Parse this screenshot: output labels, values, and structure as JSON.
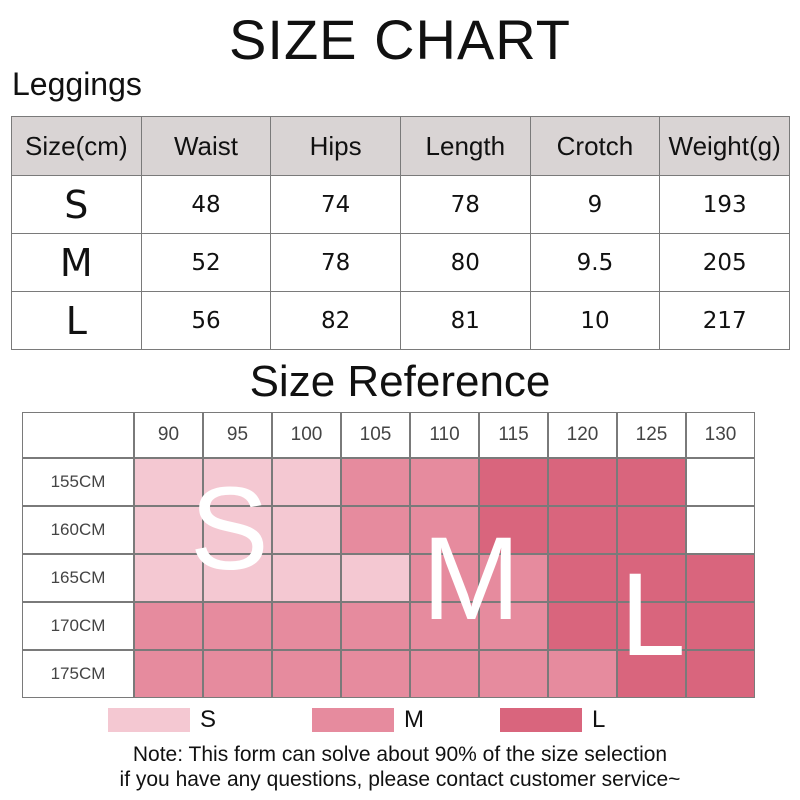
{
  "title": "SIZE CHART",
  "subtitle": "Leggings",
  "size_table": {
    "headers": [
      "Size(cm)",
      "Waist",
      "Hips",
      "Length",
      "Crotch",
      "Weight(g)"
    ],
    "rows": [
      [
        "S",
        "48",
        "74",
        "78",
        "9",
        "193"
      ],
      [
        "M",
        "52",
        "78",
        "80",
        "9.5",
        "205"
      ],
      [
        "L",
        "56",
        "82",
        "81",
        "10",
        "217"
      ]
    ]
  },
  "reference": {
    "title": "Size Reference",
    "columns": [
      "90",
      "95",
      "100",
      "105",
      "110",
      "115",
      "120",
      "125",
      "130"
    ],
    "rows": [
      "155CM",
      "160CM",
      "165CM",
      "170CM",
      "175CM"
    ],
    "grid": [
      [
        "S",
        "S",
        "S",
        "M",
        "M",
        "L",
        "L",
        "L",
        ""
      ],
      [
        "S",
        "S",
        "S",
        "M",
        "M",
        "L",
        "L",
        "L",
        ""
      ],
      [
        "S",
        "S",
        "S",
        "S",
        "M",
        "M",
        "L",
        "L",
        "L"
      ],
      [
        "M",
        "M",
        "M",
        "M",
        "M",
        "M",
        "L",
        "L",
        "L"
      ],
      [
        "M",
        "M",
        "M",
        "M",
        "M",
        "M",
        "M",
        "L",
        "L"
      ]
    ],
    "overlay_letters": [
      "S",
      "M",
      "L"
    ],
    "colors": {
      "S": "#f4c8d2",
      "M": "#e68b9e",
      "L": "#d9657d",
      "empty": "#ffffff"
    },
    "legend": [
      {
        "label": "S",
        "color": "#f4c8d2"
      },
      {
        "label": "M",
        "color": "#e68b9e"
      },
      {
        "label": "L",
        "color": "#d9657d"
      }
    ]
  },
  "note": {
    "line1": "Note: This form can solve about 90% of the size selection",
    "line2": "if you have any questions, please contact customer service~"
  }
}
